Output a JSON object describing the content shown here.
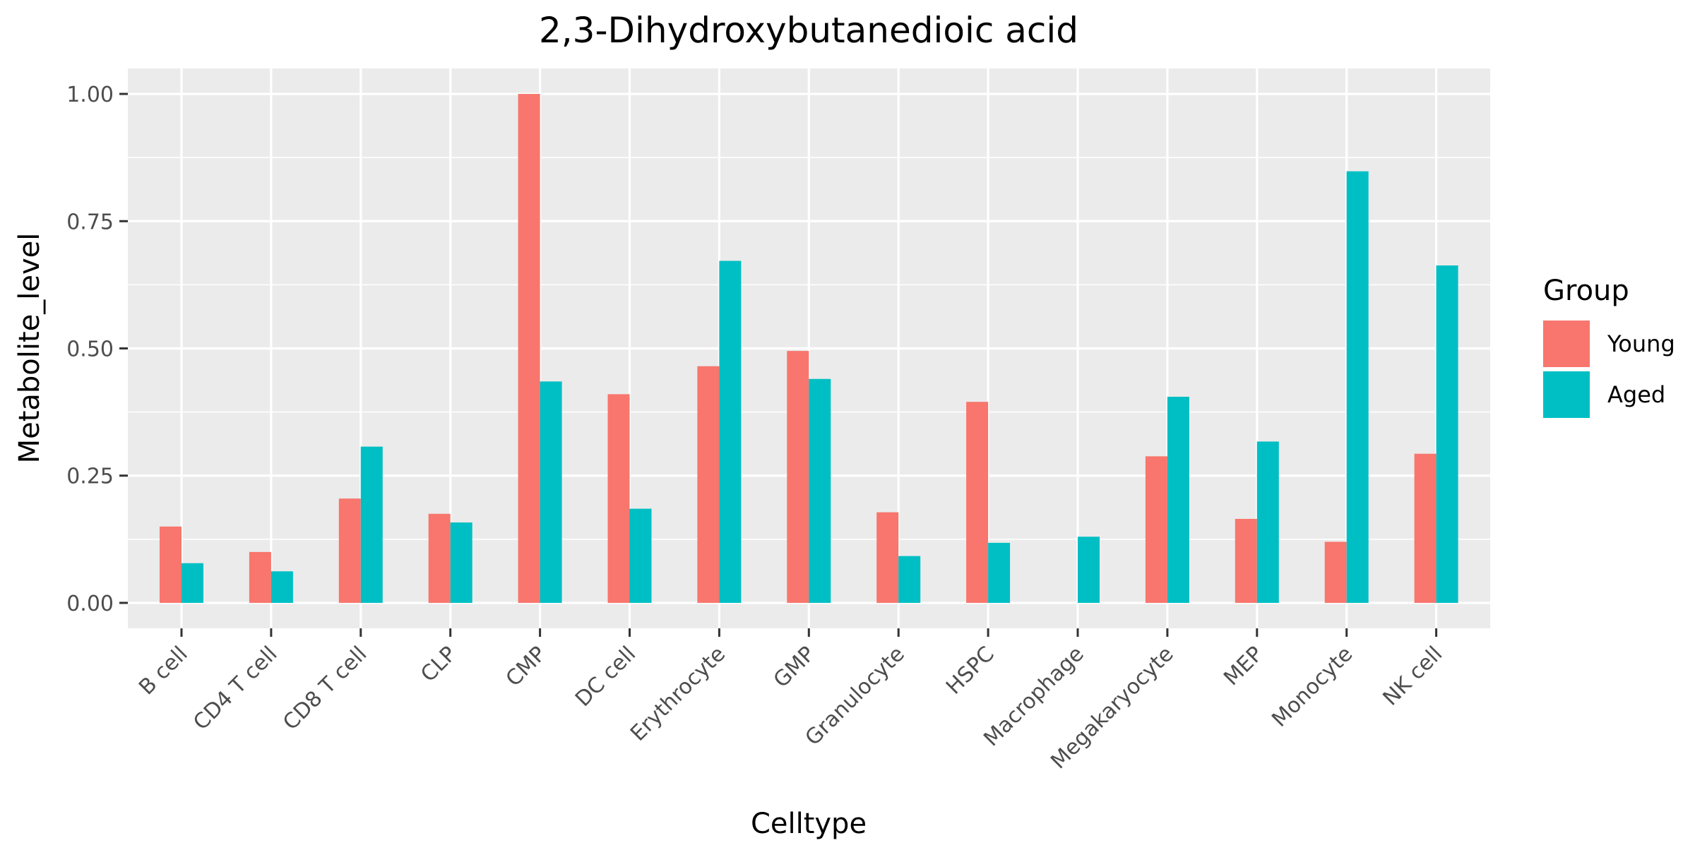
{
  "chart_data": {
    "type": "bar",
    "title": "2,3-Dihydroxybutanedioic acid",
    "xlabel": "Celltype",
    "ylabel": "Metabolite_level",
    "ylim": [
      -0.05,
      1.05
    ],
    "yticks": [
      0,
      0.25,
      0.5,
      0.75,
      1.0
    ],
    "ytick_labels": [
      "0.00",
      "0.25",
      "0.50",
      "0.75",
      "1.00"
    ],
    "grid": true,
    "legend_position": "right",
    "legend_title": "Group",
    "categories": [
      "B cell",
      "CD4 T cell",
      "CD8 T cell",
      "CLP",
      "CMP",
      "DC cell",
      "Erythrocyte",
      "GMP",
      "Granulocyte",
      "HSPC",
      "Macrophage",
      "Megakaryocyte",
      "MEP",
      "Monocyte",
      "NK cell"
    ],
    "series": [
      {
        "name": "Young",
        "color": "#F8766D",
        "values": [
          0.15,
          0.1,
          0.205,
          0.175,
          1.0,
          0.41,
          0.465,
          0.495,
          0.178,
          0.395,
          null,
          0.288,
          0.165,
          0.12,
          0.293
        ]
      },
      {
        "name": "Aged",
        "color": "#00BFC4",
        "values": [
          0.078,
          0.062,
          0.307,
          0.158,
          0.435,
          0.185,
          0.672,
          0.44,
          0.092,
          0.118,
          0.13,
          0.405,
          0.317,
          0.848,
          0.663
        ]
      }
    ]
  }
}
